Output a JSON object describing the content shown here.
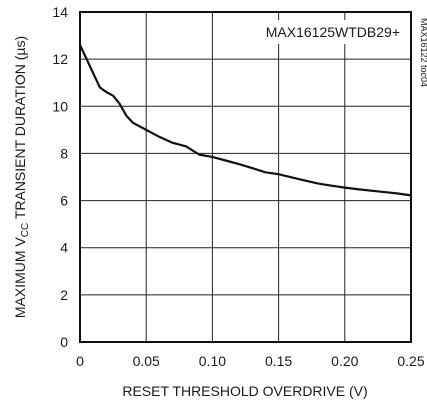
{
  "chart_data": {
    "type": "line",
    "title": "MAX16125WTDB29+",
    "watermark": "MAX16122 toc04",
    "xlabel": "RESET THRESHOLD OVERDRIVE (V)",
    "ylabel_main": "MAXIMUM V",
    "ylabel_sub": "CC",
    "ylabel_rest": " TRANSIENT DURATION (µs)",
    "xlim": [
      0,
      0.25
    ],
    "ylim": [
      0,
      14
    ],
    "x_ticks": [
      "0",
      "0.05",
      "0.10",
      "0.15",
      "0.20",
      "0.25"
    ],
    "y_ticks": [
      "0",
      "2",
      "4",
      "6",
      "8",
      "10",
      "12",
      "14"
    ],
    "grid": true,
    "series": [
      {
        "x": [
          0,
          0.005,
          0.01,
          0.015,
          0.02,
          0.025,
          0.03,
          0.035,
          0.04,
          0.05,
          0.06,
          0.07,
          0.08,
          0.09,
          0.1,
          0.11,
          0.12,
          0.13,
          0.14,
          0.15,
          0.16,
          0.17,
          0.18,
          0.19,
          0.2,
          0.21,
          0.22,
          0.23,
          0.24,
          0.25
        ],
        "y": [
          12.6,
          12.0,
          11.4,
          10.8,
          10.6,
          10.45,
          10.1,
          9.6,
          9.3,
          9.0,
          8.7,
          8.45,
          8.3,
          7.95,
          7.85,
          7.7,
          7.55,
          7.38,
          7.2,
          7.12,
          6.98,
          6.85,
          6.72,
          6.63,
          6.55,
          6.48,
          6.42,
          6.36,
          6.3,
          6.22
        ]
      }
    ],
    "line_color": "#111111",
    "grid_color": "#222222"
  }
}
